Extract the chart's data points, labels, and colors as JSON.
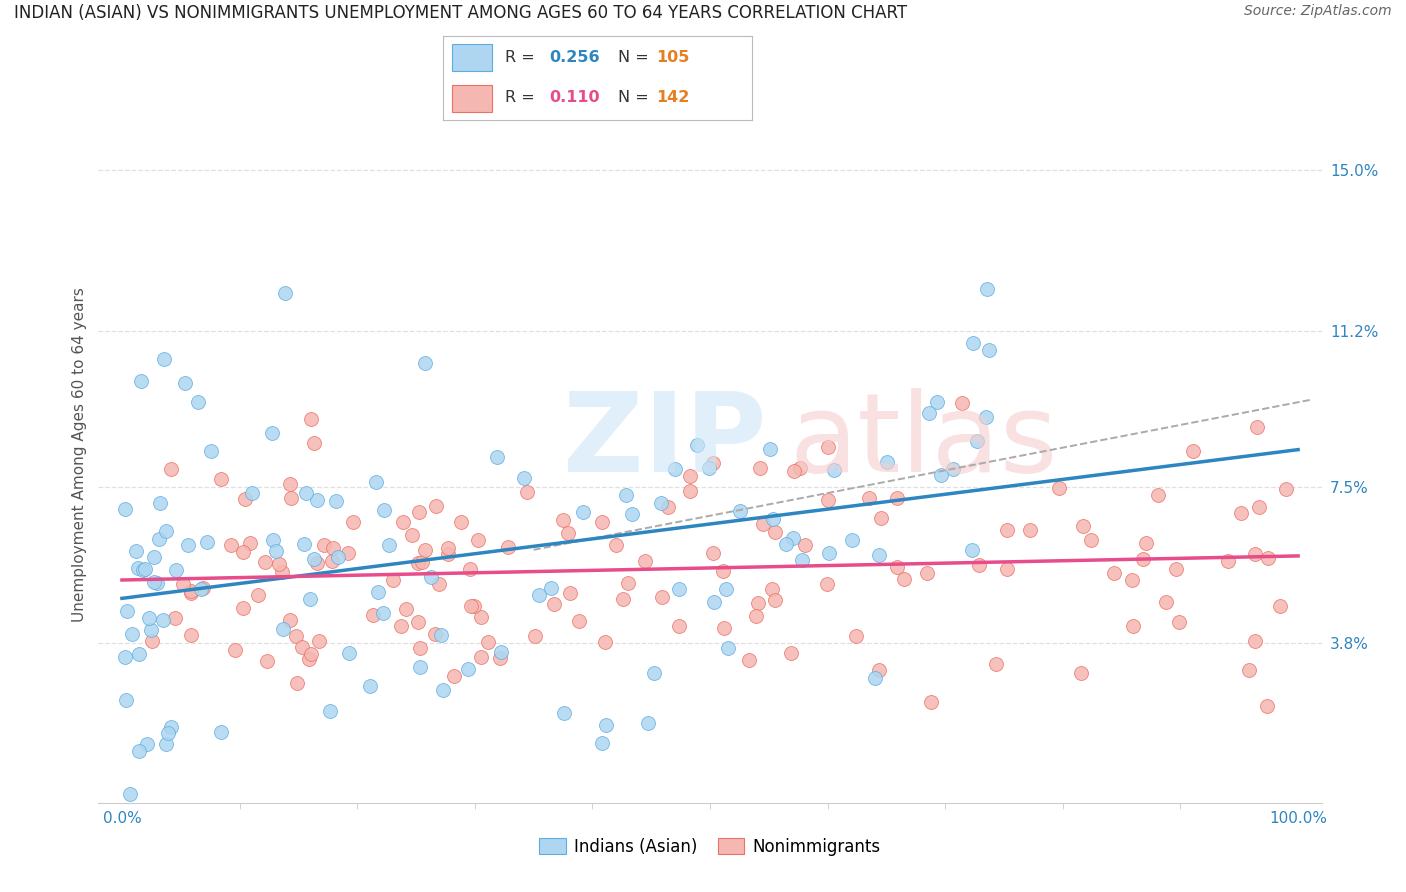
{
  "title": "INDIAN (ASIAN) VS NONIMMIGRANTS UNEMPLOYMENT AMONG AGES 60 TO 64 YEARS CORRELATION CHART",
  "source": "Source: ZipAtlas.com",
  "ylabel": "Unemployment Among Ages 60 to 64 years",
  "xlim": [
    -2,
    102
  ],
  "ylim": [
    0,
    16.5
  ],
  "yticks": [
    3.8,
    7.5,
    11.2,
    15.0
  ],
  "xtick_labels": [
    "0.0%",
    "100.0%"
  ],
  "ytick_labels": [
    "3.8%",
    "7.5%",
    "11.2%",
    "15.0%"
  ],
  "blue_color": "#aed6f1",
  "blue_edge_color": "#5dade2",
  "pink_color": "#f5b7b1",
  "pink_edge_color": "#ec7063",
  "blue_line_color": "#2e86c1",
  "pink_line_color": "#e74c8b",
  "dash_line_color": "#aaaaaa",
  "grid_color": "#e0e0e0",
  "background_color": "#ffffff",
  "blue_R": 0.256,
  "blue_N": 105,
  "pink_R": 0.11,
  "pink_N": 142,
  "R_text_color": "#333333",
  "blue_val_color": "#2e86c1",
  "pink_val_color": "#e74c8b",
  "N_val_color": "#e67e22",
  "title_fontsize": 12,
  "tick_fontsize": 11,
  "label_fontsize": 11,
  "legend_fontsize": 12,
  "ytick_color": "#2e86c1",
  "xtick_color": "#2e86c1"
}
